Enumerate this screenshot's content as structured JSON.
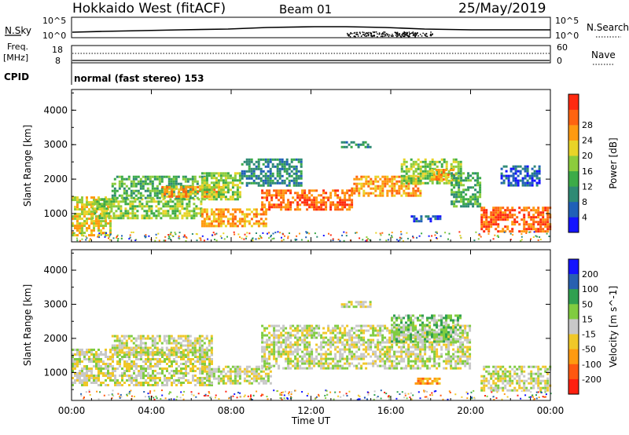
{
  "header": {
    "station": "Hokkaido West (fitACF)",
    "beam": "Beam 01",
    "date": "25/May/2019"
  },
  "top_strip": {
    "nsky_label": "N.Sky",
    "nsky_ticks": [
      "10^5",
      "10^0"
    ],
    "nsearch_label": "N.Search",
    "nsearch_ticks": [
      "10^5",
      "10^0"
    ],
    "freq_label": "Freq.",
    "freq_unit": "[MHz]",
    "freq_ticks": [
      "18",
      "8"
    ],
    "nave_label": "Nave",
    "nave_ticks": [
      "60",
      "0"
    ],
    "cpid_label": "CPID",
    "cpid_text": "normal (fast stereo) 153"
  },
  "chart_data": [
    {
      "type": "heatmap",
      "name": "power-panel",
      "ylabel": "Slant Range [km]",
      "xlabel": "",
      "x_ticks": [
        "00:00",
        "04:00",
        "08:00",
        "12:00",
        "16:00",
        "20:00",
        "00:00"
      ],
      "x_tick_values": [
        0,
        4,
        8,
        12,
        16,
        20,
        24
      ],
      "xlim": [
        0,
        24
      ],
      "y_ticks": [
        1000,
        2000,
        3000,
        4000
      ],
      "ylim": [
        180,
        4600
      ],
      "colorbar": {
        "label": "Power [dB]",
        "ticks": [
          "4",
          "8",
          "12",
          "16",
          "20",
          "24",
          "28"
        ],
        "colors": [
          "#1414ff",
          "#2060b8",
          "#2e8a74",
          "#3cab48",
          "#8ccc3c",
          "#e8d428",
          "#ff9a10",
          "#ff6410",
          "#ff2a10"
        ]
      },
      "regions": [
        {
          "t0": 0.0,
          "t1": 2.0,
          "r0": 400,
          "r1": 1500,
          "level": 5
        },
        {
          "t0": 1.0,
          "t1": 6.5,
          "r0": 850,
          "r1": 1450,
          "level": 4
        },
        {
          "t0": 2.0,
          "t1": 6.8,
          "r0": 1450,
          "r1": 2100,
          "level": 3
        },
        {
          "t0": 4.5,
          "t1": 7.5,
          "r0": 1500,
          "r1": 1800,
          "level": 6
        },
        {
          "t0": 6.5,
          "t1": 8.5,
          "r0": 1400,
          "r1": 2200,
          "level": 4
        },
        {
          "t0": 6.5,
          "t1": 9.8,
          "r0": 650,
          "r1": 1150,
          "level": 6
        },
        {
          "t0": 8.5,
          "t1": 11.5,
          "r0": 1800,
          "r1": 2600,
          "level": 2
        },
        {
          "t0": 9.5,
          "t1": 14.0,
          "r0": 1100,
          "r1": 1700,
          "level": 7
        },
        {
          "t0": 13.5,
          "t1": 15.0,
          "r0": 2900,
          "r1": 3100,
          "level": 2
        },
        {
          "t0": 14.0,
          "t1": 17.5,
          "r0": 1500,
          "r1": 2100,
          "level": 6
        },
        {
          "t0": 16.5,
          "t1": 19.5,
          "r0": 1900,
          "r1": 2600,
          "level": 4
        },
        {
          "t0": 18.0,
          "t1": 19.2,
          "r0": 2000,
          "r1": 2300,
          "level": 6
        },
        {
          "t0": 19.0,
          "t1": 20.5,
          "r0": 1200,
          "r1": 2200,
          "level": 3
        },
        {
          "t0": 17.0,
          "t1": 18.5,
          "r0": 750,
          "r1": 950,
          "level": 1
        },
        {
          "t0": 20.5,
          "t1": 24.0,
          "r0": 450,
          "r1": 1200,
          "level": 7
        },
        {
          "t0": 21.5,
          "t1": 23.5,
          "r0": 1800,
          "r1": 2400,
          "level": 1
        }
      ]
    },
    {
      "type": "heatmap",
      "name": "velocity-panel",
      "ylabel": "Slant Range [km]",
      "xlabel": "Time UT",
      "x_ticks": [
        "00:00",
        "04:00",
        "08:00",
        "12:00",
        "16:00",
        "20:00",
        "00:00"
      ],
      "x_tick_values": [
        0,
        4,
        8,
        12,
        16,
        20,
        24
      ],
      "xlim": [
        0,
        24
      ],
      "y_ticks": [
        1000,
        2000,
        3000,
        4000
      ],
      "ylim": [
        180,
        4600
      ],
      "colorbar": {
        "label": "Velocity [m s^-1]",
        "ticks": [
          "200",
          "100",
          "50",
          "15",
          "-15",
          "-50",
          "-100",
          "-200"
        ],
        "colors": [
          "#1414ff",
          "#2860b0",
          "#30a050",
          "#80cc40",
          "#c8c8c8",
          "#f0c828",
          "#ff9a10",
          "#ff5810",
          "#ff2010"
        ]
      },
      "regions": [
        {
          "t0": 0.0,
          "t1": 7.0,
          "r0": 600,
          "r1": 1700,
          "level": 4
        },
        {
          "t0": 2.0,
          "t1": 7.0,
          "r0": 1500,
          "r1": 2100,
          "level": 4
        },
        {
          "t0": 6.5,
          "t1": 10.0,
          "r0": 650,
          "r1": 1200,
          "level": 4
        },
        {
          "t0": 9.5,
          "t1": 20.0,
          "r0": 1100,
          "r1": 2400,
          "level": 4
        },
        {
          "t0": 13.5,
          "t1": 15.0,
          "r0": 2900,
          "r1": 3100,
          "level": 4
        },
        {
          "t0": 16.0,
          "t1": 19.5,
          "r0": 1900,
          "r1": 2700,
          "level": 3
        },
        {
          "t0": 17.2,
          "t1": 18.6,
          "r0": 650,
          "r1": 850,
          "level": 6
        },
        {
          "t0": 20.5,
          "t1": 24.0,
          "r0": 450,
          "r1": 1200,
          "level": 4
        }
      ]
    }
  ]
}
